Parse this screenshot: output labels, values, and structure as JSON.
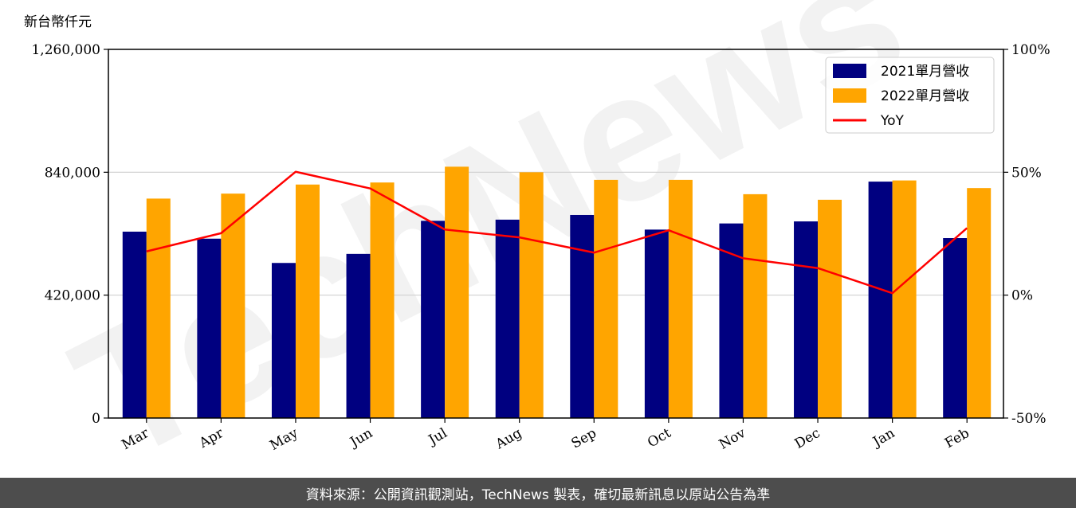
{
  "chart_data": {
    "type": "bar",
    "unit_label": "新台幣仟元",
    "categories": [
      "Mar",
      "Apr",
      "May",
      "Jun",
      "Jul",
      "Aug",
      "Sep",
      "Oct",
      "Nov",
      "Dec",
      "Jan",
      "Feb"
    ],
    "series": [
      {
        "name": "2021單月營收",
        "type": "bar",
        "axis": "left",
        "color": "#000080",
        "values": [
          637000,
          613000,
          530000,
          561000,
          674000,
          678000,
          694000,
          644000,
          665000,
          672000,
          808000,
          615000
        ]
      },
      {
        "name": "2022單月營收",
        "type": "bar",
        "axis": "left",
        "color": "#ffa500",
        "values": [
          750000,
          767000,
          798000,
          805000,
          859000,
          840000,
          814000,
          814000,
          765000,
          746000,
          812000,
          786000
        ]
      },
      {
        "name": "YoY",
        "type": "line",
        "axis": "right",
        "color": "#ff0000",
        "values": [
          17.8,
          25.2,
          50.2,
          43.4,
          26.7,
          23.5,
          17.3,
          26.4,
          15.0,
          11.0,
          0.8,
          27.3
        ]
      }
    ],
    "left_axis": {
      "ylim": [
        0,
        1260000
      ],
      "ticks": [
        "0",
        "420,000",
        "840,000",
        "1,260,000"
      ],
      "tick_values": [
        0,
        420000,
        840000,
        1260000
      ]
    },
    "right_axis": {
      "ylim": [
        -50,
        100
      ],
      "ticks": [
        "-50%",
        "0%",
        "50%",
        "100%"
      ],
      "tick_values": [
        -50,
        0,
        50,
        100
      ]
    },
    "grid": "horizontal",
    "legend_position": "top-right"
  },
  "watermark": "TechNews",
  "footer": {
    "text": "資料來源：公開資訊觀測站，TechNews 製表，確切最新訊息以原站公告為準"
  }
}
